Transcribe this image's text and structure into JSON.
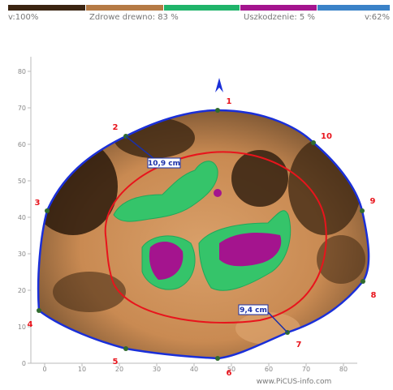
{
  "legend": {
    "left": "v:100%",
    "healthy": "Zdrowe drewno: 83 %",
    "damage": "Uszkodzenie: 5 %",
    "right": "v:62%"
  },
  "axes": {
    "yticks": [
      "0",
      "10",
      "20",
      "30",
      "40",
      "50",
      "60",
      "70",
      "80"
    ],
    "xticks": [
      "0",
      "10",
      "20",
      "30",
      "40",
      "50",
      "60",
      "70",
      "80"
    ]
  },
  "sensors": [
    "1",
    "2",
    "3",
    "4",
    "5",
    "6",
    "7",
    "8",
    "9",
    "10"
  ],
  "measurements": [
    "10,9 cm",
    "9,4 cm"
  ],
  "footer": "www.PiCUS-info.com"
}
